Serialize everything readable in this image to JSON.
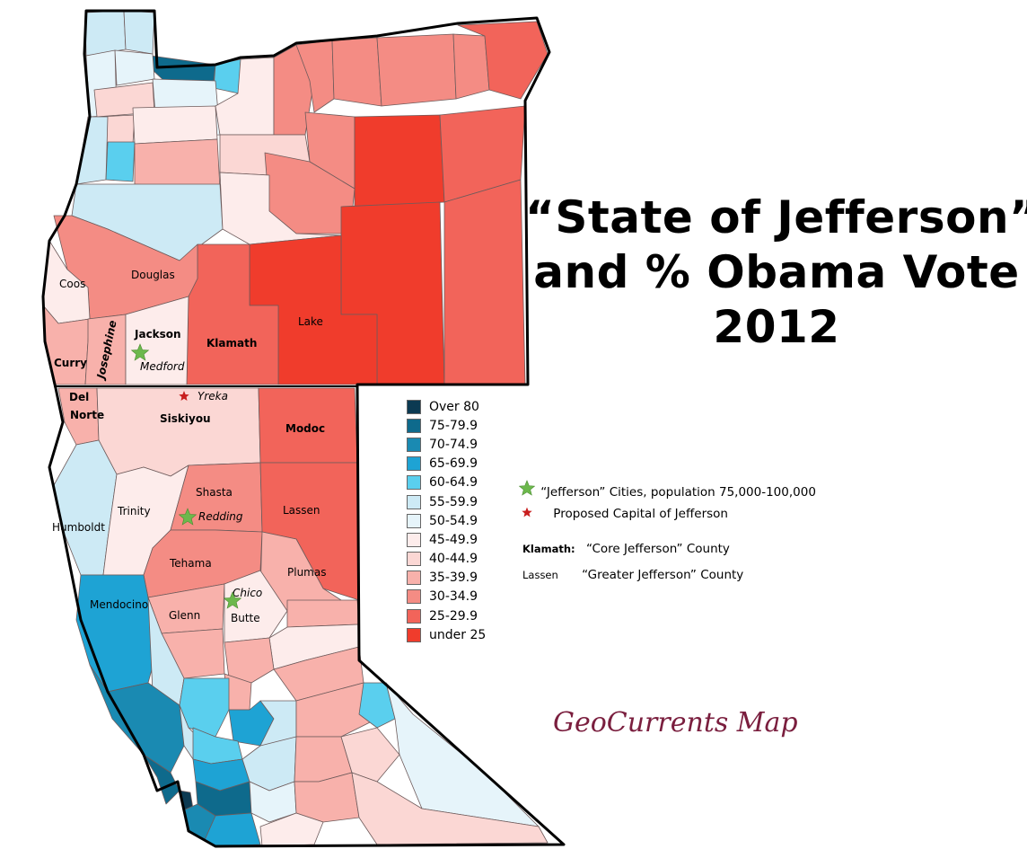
{
  "title": {
    "line1": "“State of Jefferson”",
    "line2": "and % Obama Vote",
    "line3": "2012"
  },
  "legend": [
    {
      "label": "Over 80",
      "color": "#0c3a52"
    },
    {
      "label": "75-79.9",
      "color": "#0e6a8c"
    },
    {
      "label": "70-74.9",
      "color": "#1a8ab2"
    },
    {
      "label": "65-69.9",
      "color": "#1ea3d4"
    },
    {
      "label": "60-64.9",
      "color": "#5acfee"
    },
    {
      "label": "55-59.9",
      "color": "#cdeaf5"
    },
    {
      "label": "50-54.9",
      "color": "#e6f4fa"
    },
    {
      "label": "45-49.9",
      "color": "#fdeceb"
    },
    {
      "label": "40-44.9",
      "color": "#fbd7d4"
    },
    {
      "label": "35-39.9",
      "color": "#f8b1ab"
    },
    {
      "label": "30-34.9",
      "color": "#f48c84"
    },
    {
      "label": "25-29.9",
      "color": "#f2645a"
    },
    {
      "label": "under 25",
      "color": "#f03c2c"
    }
  ],
  "key": {
    "cities_label": "“Jefferson” Cities, population 75,000-100,000",
    "capital_label": "Proposed Capital of Jefferson",
    "core_example": "Klamath:",
    "core_label": "“Core Jefferson” County",
    "greater_example": "Lassen",
    "greater_label": "“Greater Jefferson” County",
    "city_star_color": "#6cb84c",
    "capital_star_color": "#c81e1e"
  },
  "map_labels": {
    "coos": "Coos",
    "douglas": "Douglas",
    "jackson": "Jackson",
    "medford": "Medford",
    "klamath": "Klamath",
    "lake": "Lake",
    "curry": "Curry",
    "josephine": "Josephine",
    "del": "Del",
    "norte": "Norte",
    "siskiyou": "Siskiyou",
    "yreka": "Yreka",
    "modoc": "Modoc",
    "shasta": "Shasta",
    "redding": "Redding",
    "trinity": "Trinity",
    "humboldt": "Humboldt",
    "lassen": "Lassen",
    "tehama": "Tehama",
    "plumas": "Plumas",
    "mendocino": "Mendocino",
    "chico": "Chico",
    "glenn": "Glenn",
    "butte": "Butte"
  },
  "credit": "GeoCurrents Map"
}
